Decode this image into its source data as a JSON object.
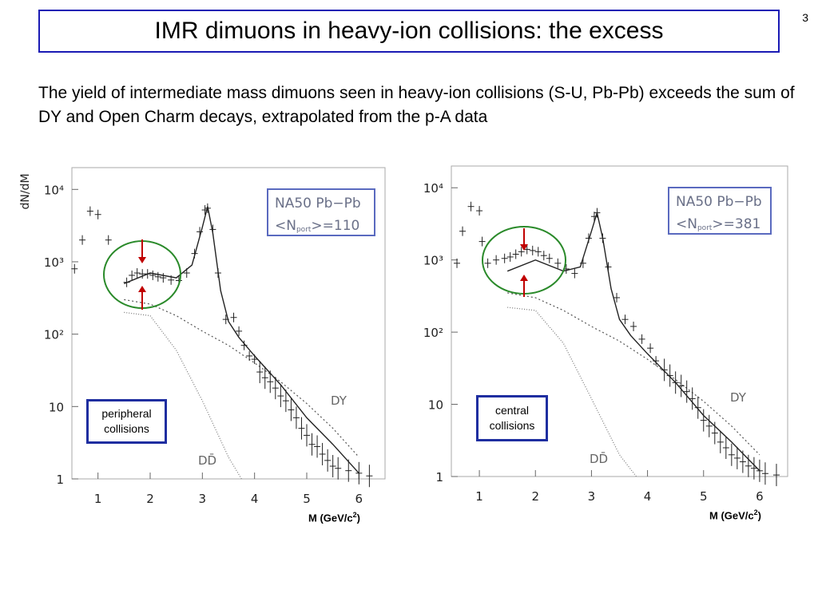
{
  "slide": {
    "number": "3",
    "title": "IMR dimuons in heavy-ion collisions: the excess",
    "body": "The yield of intermediate mass dimuons seen in heavy-ion collisions (S-U, Pb-Pb) exceeds the sum of DY and Open Charm decays, extrapolated from the p-A data"
  },
  "colors": {
    "title_border": "#1a1ab4",
    "callout_border": "#1f2ea0",
    "highlight_circle": "#2a8a2a",
    "arrow": "#c00000"
  },
  "chart_data": [
    {
      "type": "scatter",
      "ylabel": "dN/dM",
      "yscale": "log",
      "ylim": [
        1,
        20000
      ],
      "xlim": [
        0.5,
        6.5
      ],
      "xticks": [
        "1",
        "2",
        "3",
        "4",
        "5",
        "6"
      ],
      "yticks": [
        "1",
        "10",
        "10²",
        "10³",
        "10⁴"
      ],
      "legend": [
        "NA50  Pb−Pb",
        "<N",
        "port",
        ">=110"
      ],
      "curve_labels": [
        "DY",
        "DD̄"
      ],
      "callout": [
        "peripheral",
        "collisions"
      ],
      "xlabel_note": "M (GeV/c",
      "xlabel_sup": "2",
      "xlabel_close": ")",
      "series": [
        {
          "x": [
            0.55,
            0.7,
            0.85,
            1.0,
            1.2,
            1.55,
            1.65,
            1.75,
            1.85,
            1.95,
            2.05,
            2.15,
            2.25,
            2.4,
            2.55,
            2.7,
            2.85,
            2.95,
            3.05,
            3.1,
            3.2,
            3.3,
            3.45,
            3.6,
            3.7,
            3.8,
            3.9,
            4.0,
            4.1,
            4.2,
            4.3,
            4.4,
            4.5,
            4.6,
            4.7,
            4.8,
            4.9,
            5.0,
            5.1,
            5.2,
            5.3,
            5.4,
            5.5,
            5.6,
            5.8,
            6.0,
            6.2
          ],
          "y": [
            800,
            2000,
            5000,
            4500,
            2000,
            520,
            650,
            700,
            680,
            680,
            650,
            620,
            600,
            560,
            550,
            700,
            1300,
            2600,
            5200,
            5500,
            2800,
            700,
            160,
            170,
            110,
            70,
            50,
            45,
            30,
            25,
            22,
            18,
            14,
            12,
            9,
            7,
            5,
            4,
            3,
            2.8,
            2.2,
            1.8,
            1.5,
            1.4,
            1.3,
            1.2,
            1.1
          ]
        },
        {
          "x": [
            1.5,
            2.0,
            2.5,
            2.8,
            3.0,
            3.1,
            3.2,
            3.35,
            3.5,
            3.7,
            4.0,
            4.5,
            5.0,
            5.5,
            6.0
          ],
          "y": [
            500,
            700,
            600,
            900,
            3000,
            5800,
            2500,
            400,
            150,
            90,
            50,
            20,
            7,
            3,
            1.2
          ]
        },
        {
          "x": [
            1.5,
            2.0,
            2.5,
            3.0,
            3.5,
            4.0,
            4.5,
            5.0,
            5.5,
            6.0
          ],
          "y": [
            300,
            260,
            180,
            110,
            70,
            40,
            22,
            11,
            5,
            2
          ]
        },
        {
          "x": [
            1.5,
            2.0,
            2.5,
            3.0,
            3.5,
            3.75
          ],
          "y": [
            200,
            180,
            60,
            12,
            2,
            1
          ]
        }
      ]
    },
    {
      "type": "scatter",
      "ylabel": "",
      "yscale": "log",
      "ylim": [
        1,
        20000
      ],
      "xlim": [
        0.5,
        6.5
      ],
      "xticks": [
        "1",
        "2",
        "3",
        "4",
        "5",
        "6"
      ],
      "yticks": [
        "1",
        "10",
        "10²",
        "10³",
        "10⁴"
      ],
      "legend": [
        "NA50  Pb−Pb",
        "<N",
        "port",
        ">=381"
      ],
      "curve_labels": [
        "DY",
        "DD̄"
      ],
      "callout": [
        "central",
        "collisions"
      ],
      "xlabel_note": "M (GeV/c",
      "xlabel_sup": "2",
      "xlabel_close": ")",
      "series": [
        {
          "x": [
            0.6,
            0.7,
            0.85,
            1.0,
            1.05,
            1.15,
            1.3,
            1.45,
            1.55,
            1.65,
            1.75,
            1.85,
            1.95,
            2.05,
            2.15,
            2.25,
            2.4,
            2.55,
            2.7,
            2.85,
            2.95,
            3.05,
            3.1,
            3.2,
            3.3,
            3.45,
            3.6,
            3.75,
            3.9,
            4.05,
            4.15,
            4.3,
            4.4,
            4.5,
            4.6,
            4.7,
            4.8,
            4.9,
            5.0,
            5.1,
            5.2,
            5.3,
            5.4,
            5.5,
            5.6,
            5.7,
            5.8,
            5.9,
            6.0,
            6.1,
            6.3
          ],
          "y": [
            900,
            2500,
            5500,
            4800,
            1800,
            900,
            1000,
            1050,
            1100,
            1200,
            1300,
            1400,
            1350,
            1300,
            1150,
            1050,
            900,
            750,
            650,
            900,
            2000,
            4000,
            4500,
            2000,
            800,
            300,
            150,
            120,
            80,
            60,
            40,
            30,
            25,
            20,
            18,
            15,
            12,
            9,
            6,
            5,
            4,
            3,
            2.5,
            2,
            1.8,
            1.6,
            1.4,
            1.3,
            1.2,
            1.1,
            1.05
          ]
        },
        {
          "x": [
            1.5,
            2.0,
            2.5,
            2.8,
            3.0,
            3.1,
            3.2,
            3.35,
            3.5,
            3.7,
            4.0,
            4.5,
            5.0,
            5.5,
            6.0
          ],
          "y": [
            700,
            1000,
            700,
            800,
            2500,
            4500,
            2000,
            400,
            150,
            90,
            50,
            20,
            7,
            3,
            1.2
          ]
        },
        {
          "x": [
            1.5,
            2.0,
            2.5,
            3.0,
            3.5,
            4.0,
            4.5,
            5.0,
            5.5,
            6.0
          ],
          "y": [
            350,
            300,
            200,
            120,
            75,
            42,
            22,
            11,
            5,
            2
          ]
        },
        {
          "x": [
            1.5,
            2.0,
            2.5,
            3.0,
            3.5,
            3.8
          ],
          "y": [
            220,
            200,
            70,
            12,
            2,
            1
          ]
        }
      ]
    }
  ]
}
